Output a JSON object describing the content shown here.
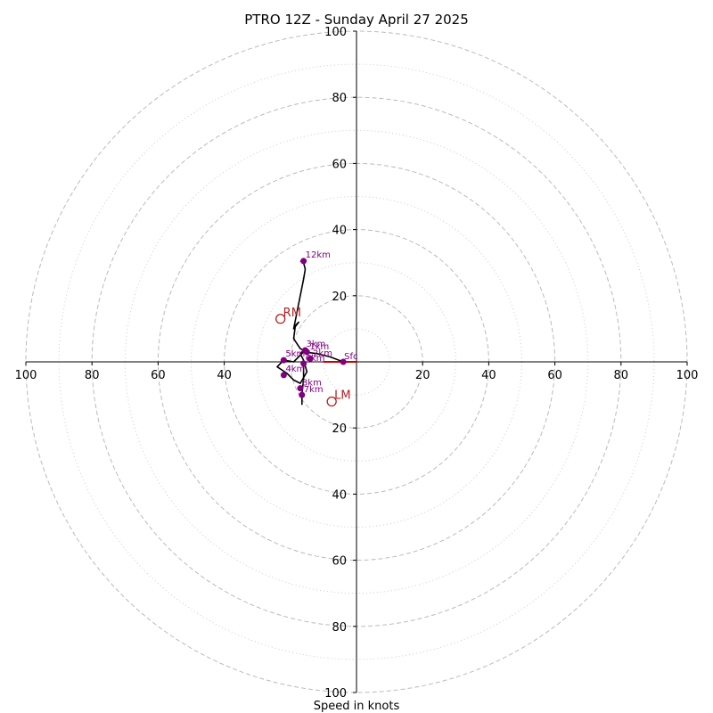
{
  "chart_data": {
    "type": "hodograph",
    "title": "PTRO 12Z - Sunday April 27 2025",
    "xlabel": "Speed in knots",
    "rmax": 100,
    "major_rings": [
      20,
      40,
      60,
      80,
      100
    ],
    "minor_rings": [
      10,
      30,
      50,
      70,
      90
    ],
    "x_ticks": [
      {
        "value": -100,
        "label": "100"
      },
      {
        "value": -80,
        "label": "80"
      },
      {
        "value": -60,
        "label": "60"
      },
      {
        "value": -40,
        "label": "40"
      },
      {
        "value": 20,
        "label": "20"
      },
      {
        "value": 40,
        "label": "40"
      },
      {
        "value": 60,
        "label": "60"
      },
      {
        "value": 80,
        "label": "80"
      },
      {
        "value": 100,
        "label": "100"
      }
    ],
    "y_ticks": [
      {
        "value": 100,
        "label": "100"
      },
      {
        "value": 80,
        "label": "80"
      },
      {
        "value": 60,
        "label": "60"
      },
      {
        "value": 40,
        "label": "40"
      },
      {
        "value": 20,
        "label": "20"
      },
      {
        "value": -20,
        "label": "20"
      },
      {
        "value": -40,
        "label": "40"
      },
      {
        "value": -60,
        "label": "60"
      },
      {
        "value": -80,
        "label": "80"
      },
      {
        "value": -100,
        "label": "100"
      }
    ],
    "shear_vector": {
      "u0": 0,
      "v0": 0,
      "u1": -10,
      "v1": 0,
      "color": "#cc0000"
    },
    "hodograph_trace": [
      [
        -4,
        0
      ],
      [
        -8,
        1.5
      ],
      [
        -12,
        2.5
      ],
      [
        -16,
        3
      ],
      [
        -19,
        0
      ],
      [
        -22,
        0.5
      ],
      [
        -24,
        -1.5
      ],
      [
        -21,
        -3.5
      ],
      [
        -19,
        -5.5
      ],
      [
        -17,
        -6.5
      ],
      [
        -15,
        -3
      ],
      [
        -16,
        0.5
      ],
      [
        -17,
        2.5
      ],
      [
        -16,
        3.5
      ],
      [
        -17,
        4
      ],
      [
        -19,
        7
      ],
      [
        -18.5,
        11
      ],
      [
        -17.5,
        12
      ],
      [
        -19,
        10
      ],
      [
        -18,
        15
      ],
      [
        -17,
        20
      ],
      [
        -16,
        25
      ],
      [
        -15.5,
        28
      ],
      [
        -16,
        30
      ],
      [
        -17,
        30.5
      ]
    ],
    "hodograph_trace_lower": [
      [
        -16,
        0.5
      ],
      [
        -16,
        -5
      ],
      [
        -16.5,
        -10
      ],
      [
        -16.5,
        -13
      ]
    ],
    "height_points": [
      {
        "label": "Sfc",
        "u": -4,
        "v": 0,
        "dx": 1,
        "dy": -3
      },
      {
        "label": "1km",
        "u": -15,
        "v": 3,
        "dx": 3,
        "dy": -3
      },
      {
        "label": "2km",
        "u": -14,
        "v": 1,
        "dx": 3,
        "dy": -3
      },
      {
        "label": "3km",
        "u": -15.5,
        "v": 3.5,
        "dx": 1,
        "dy": -4
      },
      {
        "label": "4km",
        "u": -22,
        "v": -4,
        "dx": 2,
        "dy": -4
      },
      {
        "label": "5km",
        "u": -22,
        "v": 0.5,
        "dx": 2,
        "dy": -4
      },
      {
        "label": "6km",
        "u": -16,
        "v": -0.5,
        "dx": 2,
        "dy": -3
      },
      {
        "label": "7km",
        "u": -16.5,
        "v": -10,
        "dx": 2,
        "dy": -3
      },
      {
        "label": "8km",
        "u": -17,
        "v": -8,
        "dx": 2,
        "dy": -3
      },
      {
        "label": "12km",
        "u": -16,
        "v": 30.5,
        "dx": 2,
        "dy": -4
      }
    ],
    "storm_motions": [
      {
        "label": "RM",
        "u": -23,
        "v": 13,
        "dx": 3,
        "dy": -3
      },
      {
        "label": "LM",
        "u": -7.5,
        "v": -12,
        "dx": 3,
        "dy": -3
      }
    ],
    "colors": {
      "trace": "#000000",
      "height_point": "#800080",
      "height_label": "#800080",
      "storm_motion": "#b22222",
      "major_ring": "#bbbbbb",
      "minor_ring": "#cccccc",
      "axis": "#000000"
    }
  }
}
